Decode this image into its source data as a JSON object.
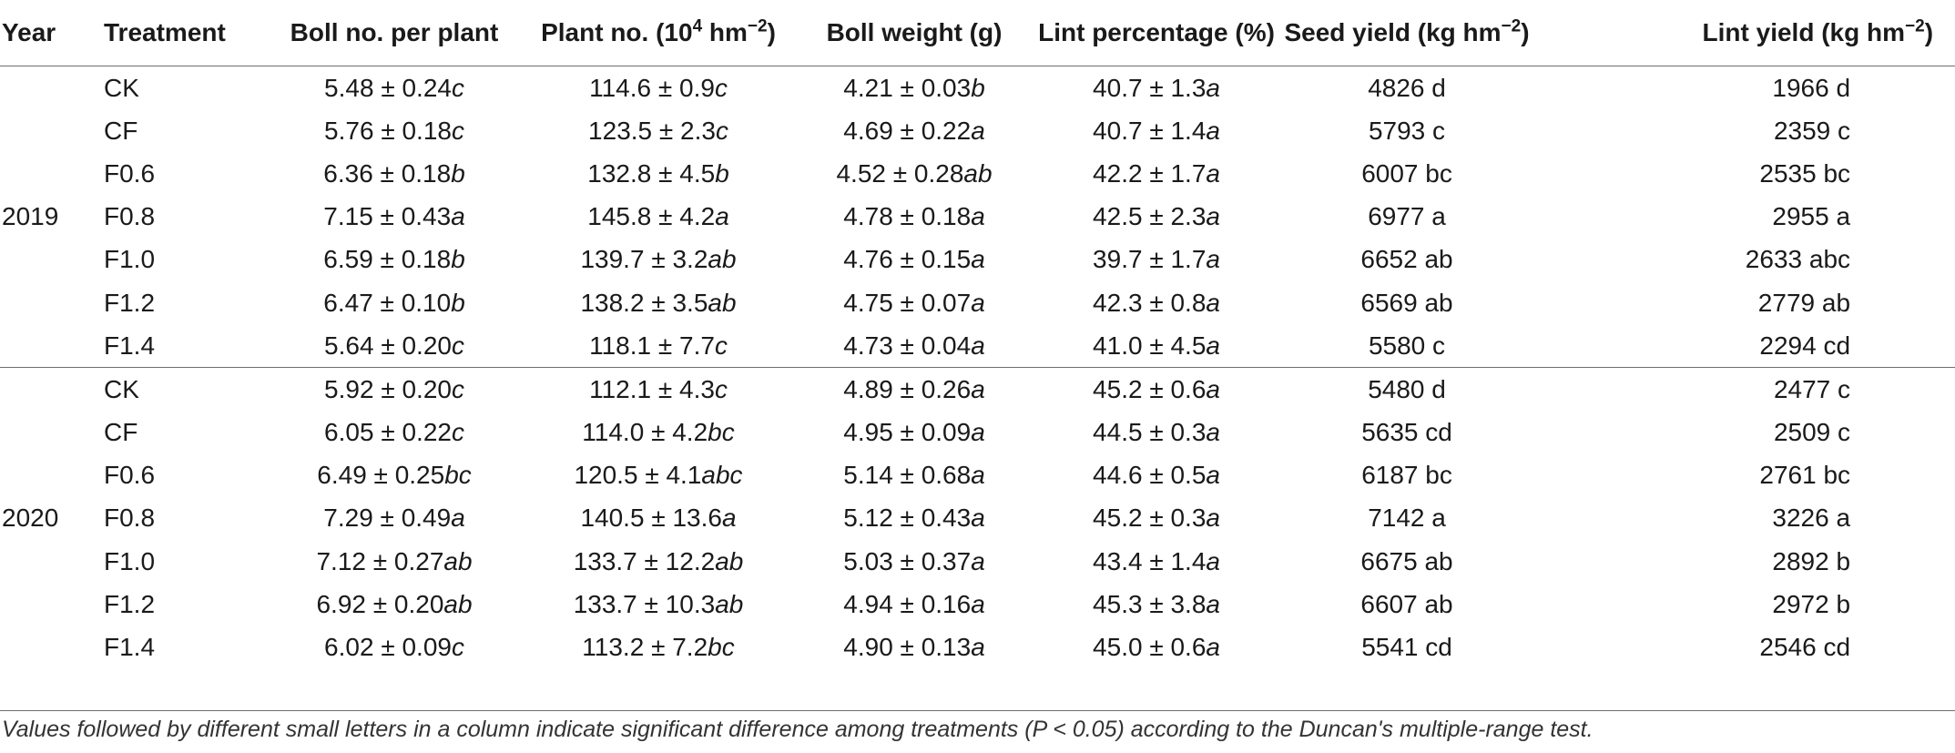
{
  "table": {
    "headers": {
      "year": "Year",
      "treatment": "Treatment",
      "boll_no": "Boll no. per plant",
      "plant_no": {
        "pre": "Plant no. (10",
        "sup1": "4",
        "mid": " hm",
        "sup2": "−2",
        "post": ")"
      },
      "boll_weight": "Boll weight (g)",
      "lint_pct": "Lint percentage (%)",
      "seed_yield": {
        "pre": "Seed yield (kg hm",
        "sup": "−2",
        "post": ")"
      },
      "lint_yield": {
        "pre": "Lint yield (kg hm",
        "sup": "−2",
        "post": ")"
      }
    },
    "groups": [
      {
        "year": "2019",
        "rows": [
          {
            "treatment": "CK",
            "boll": {
              "v": "5.48 ± 0.24",
              "l": "c"
            },
            "plant": {
              "v": "114.6 ± 0.9",
              "l": "c"
            },
            "weight": {
              "v": "4.21 ± 0.03",
              "l": "b"
            },
            "lint": {
              "v": "40.7 ± 1.3",
              "l": "a"
            },
            "seed": "4826 d",
            "lint_yield": "1966 d"
          },
          {
            "treatment": "CF",
            "boll": {
              "v": "5.76 ± 0.18",
              "l": "c"
            },
            "plant": {
              "v": "123.5 ± 2.3",
              "l": "c"
            },
            "weight": {
              "v": "4.69 ± 0.22",
              "l": "a"
            },
            "lint": {
              "v": "40.7 ± 1.4",
              "l": "a"
            },
            "seed": "5793 c",
            "lint_yield": "2359 c"
          },
          {
            "treatment": "F0.6",
            "boll": {
              "v": "6.36 ± 0.18",
              "l": "b"
            },
            "plant": {
              "v": "132.8 ± 4.5",
              "l": "b"
            },
            "weight": {
              "v": "4.52 ± 0.28",
              "l": "ab"
            },
            "lint": {
              "v": "42.2 ± 1.7",
              "l": "a"
            },
            "seed": "6007 bc",
            "lint_yield": "2535 bc"
          },
          {
            "treatment": "F0.8",
            "boll": {
              "v": "7.15 ± 0.43",
              "l": "a"
            },
            "plant": {
              "v": "145.8 ± 4.2",
              "l": "a"
            },
            "weight": {
              "v": "4.78 ± 0.18",
              "l": "a"
            },
            "lint": {
              "v": "42.5 ± 2.3",
              "l": "a"
            },
            "seed": "6977 a",
            "lint_yield": "2955 a"
          },
          {
            "treatment": "F1.0",
            "boll": {
              "v": "6.59 ± 0.18",
              "l": "b"
            },
            "plant": {
              "v": "139.7 ± 3.2",
              "l": "ab"
            },
            "weight": {
              "v": "4.76 ± 0.15",
              "l": "a"
            },
            "lint": {
              "v": "39.7 ± 1.7",
              "l": "a"
            },
            "seed": "6652 ab",
            "lint_yield": "2633 abc"
          },
          {
            "treatment": "F1.2",
            "boll": {
              "v": "6.47 ± 0.10",
              "l": "b"
            },
            "plant": {
              "v": "138.2 ± 3.5",
              "l": "ab"
            },
            "weight": {
              "v": "4.75 ± 0.07",
              "l": "a"
            },
            "lint": {
              "v": "42.3 ± 0.8",
              "l": "a"
            },
            "seed": "6569 ab",
            "lint_yield": "2779 ab"
          },
          {
            "treatment": "F1.4",
            "boll": {
              "v": "5.64 ± 0.20",
              "l": "c"
            },
            "plant": {
              "v": "118.1 ± 7.7",
              "l": "c"
            },
            "weight": {
              "v": "4.73 ± 0.04",
              "l": "a"
            },
            "lint": {
              "v": "41.0 ± 4.5",
              "l": "a"
            },
            "seed": "5580 c",
            "lint_yield": "2294 cd"
          }
        ]
      },
      {
        "year": "2020",
        "rows": [
          {
            "treatment": "CK",
            "boll": {
              "v": "5.92 ± 0.20",
              "l": "c"
            },
            "plant": {
              "v": "112.1 ± 4.3",
              "l": "c"
            },
            "weight": {
              "v": "4.89 ± 0.26",
              "l": "a"
            },
            "lint": {
              "v": "45.2 ± 0.6",
              "l": "a"
            },
            "seed": "5480 d",
            "lint_yield": "2477 c"
          },
          {
            "treatment": "CF",
            "boll": {
              "v": "6.05 ± 0.22",
              "l": "c"
            },
            "plant": {
              "v": "114.0 ± 4.2",
              "l": "bc"
            },
            "weight": {
              "v": "4.95 ± 0.09",
              "l": "a"
            },
            "lint": {
              "v": "44.5 ± 0.3",
              "l": "a"
            },
            "seed": "5635 cd",
            "lint_yield": "2509 c"
          },
          {
            "treatment": "F0.6",
            "boll": {
              "v": "6.49 ± 0.25",
              "l": "bc"
            },
            "plant": {
              "v": "120.5 ± 4.1",
              "l": "abc"
            },
            "weight": {
              "v": "5.14 ± 0.68",
              "l": "a"
            },
            "lint": {
              "v": "44.6 ± 0.5",
              "l": "a"
            },
            "seed": "6187 bc",
            "lint_yield": "2761 bc"
          },
          {
            "treatment": "F0.8",
            "boll": {
              "v": "7.29 ± 0.49",
              "l": "a"
            },
            "plant": {
              "v": "140.5 ± 13.6",
              "l": "a"
            },
            "weight": {
              "v": "5.12 ± 0.43",
              "l": "a"
            },
            "lint": {
              "v": "45.2 ± 0.3",
              "l": "a"
            },
            "seed": "7142 a",
            "lint_yield": "3226 a"
          },
          {
            "treatment": "F1.0",
            "boll": {
              "v": "7.12 ± 0.27",
              "l": "ab"
            },
            "plant": {
              "v": "133.7 ± 12.2",
              "l": "ab"
            },
            "weight": {
              "v": "5.03 ± 0.37",
              "l": "a"
            },
            "lint": {
              "v": "43.4 ± 1.4",
              "l": "a"
            },
            "seed": "6675 ab",
            "lint_yield": "2892 b"
          },
          {
            "treatment": "F1.2",
            "boll": {
              "v": "6.92 ± 0.20",
              "l": "ab"
            },
            "plant": {
              "v": "133.7 ± 10.3",
              "l": "ab"
            },
            "weight": {
              "v": "4.94 ± 0.16",
              "l": "a"
            },
            "lint": {
              "v": "45.3 ± 3.8",
              "l": "a"
            },
            "seed": "6607 ab",
            "lint_yield": "2972 b"
          },
          {
            "treatment": "F1.4",
            "boll": {
              "v": "6.02 ± 0.09",
              "l": "c"
            },
            "plant": {
              "v": "113.2 ± 7.2",
              "l": "bc"
            },
            "weight": {
              "v": "4.90 ± 0.13",
              "l": "a"
            },
            "lint": {
              "v": "45.0 ± 0.6",
              "l": "a"
            },
            "seed": "5541 cd",
            "lint_yield": "2546 cd"
          }
        ]
      }
    ]
  },
  "caption": "Values followed by different small letters in a column indicate significant difference among treatments (P < 0.05) according to the Duncan's multiple-range test."
}
